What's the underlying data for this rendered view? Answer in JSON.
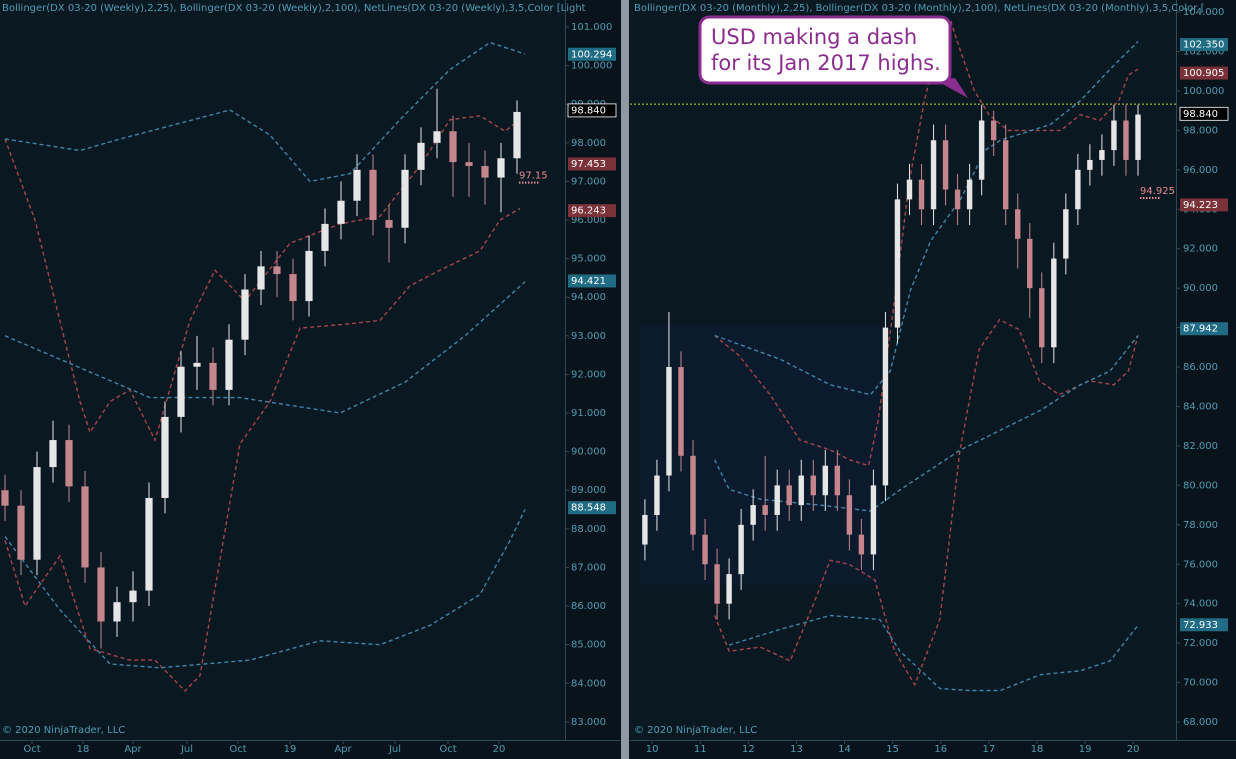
{
  "chart_data": [
    {
      "type": "candlestick",
      "header": "Bollinger(DX 03-20 (Weekly),2,25), Bollinger(DX 03-20 (Weekly),2,100), NetLines(DX 03-20 (Weekly),3,5,Color [Light",
      "copyright": "© 2020 NinjaTrader, LLC",
      "x": [
        0,
        4,
        8,
        12,
        16,
        20,
        24,
        28,
        32,
        36,
        40,
        44,
        48,
        52,
        56,
        60,
        64,
        68,
        72,
        76,
        80,
        84,
        88,
        92,
        96,
        100,
        104,
        108,
        112,
        116,
        120,
        124,
        128
      ],
      "open": [
        89.0,
        88.6,
        87.2,
        89.6,
        90.3,
        89.1,
        87.0,
        85.6,
        86.1,
        86.4,
        88.8,
        90.9,
        92.2,
        92.3,
        91.6,
        92.9,
        94.2,
        94.8,
        94.6,
        93.9,
        95.2,
        95.9,
        96.5,
        97.3,
        96.0,
        95.8,
        97.3,
        98.0,
        98.3,
        97.5,
        97.4,
        97.1,
        97.6
      ],
      "high": [
        89.4,
        89.0,
        90.0,
        90.8,
        90.7,
        89.5,
        87.4,
        86.5,
        86.9,
        89.2,
        91.3,
        92.6,
        93.0,
        92.7,
        93.3,
        94.6,
        95.2,
        95.2,
        95.0,
        95.6,
        96.3,
        97.0,
        97.7,
        97.7,
        96.4,
        97.7,
        98.4,
        99.4,
        98.7,
        98.0,
        97.8,
        98.0,
        99.1
      ],
      "low": [
        88.2,
        86.8,
        86.8,
        89.2,
        88.7,
        86.6,
        84.9,
        85.2,
        85.6,
        86.0,
        88.4,
        90.5,
        91.6,
        91.2,
        91.2,
        92.5,
        93.8,
        94.0,
        93.4,
        93.5,
        94.8,
        95.5,
        96.1,
        95.6,
        94.9,
        95.4,
        96.9,
        97.6,
        96.6,
        96.6,
        96.4,
        96.2,
        97.2
      ],
      "close": [
        88.6,
        87.2,
        89.6,
        90.3,
        89.1,
        87.0,
        85.6,
        86.1,
        86.4,
        88.8,
        90.9,
        92.2,
        92.3,
        91.6,
        92.9,
        94.2,
        94.8,
        94.6,
        93.9,
        95.2,
        95.9,
        96.5,
        97.3,
        96.0,
        95.8,
        97.3,
        98.0,
        98.3,
        97.5,
        97.4,
        97.1,
        97.6,
        98.8
      ],
      "up_color": "#e6e6e6",
      "down_color": "#c4858d",
      "bands": [
        {
          "color": "#a8454c",
          "x": [
            0,
            7.5,
            12.5,
            18.75,
            21.25,
            26.25,
            31.25,
            37.5,
            46.25,
            52.5,
            60,
            71.25,
            83.75,
            93.75,
            103.75,
            111.25,
            118.75,
            125,
            128.75
          ],
          "values": [
            98.1,
            96.0,
            93.9,
            91.3,
            90.5,
            91.3,
            91.6,
            90.3,
            93.4,
            94.7,
            93.9,
            95.4,
            95.9,
            96.1,
            97.4,
            98.6,
            98.7,
            98.3,
            98.6
          ]
        },
        {
          "color": "#a8454c",
          "x": [
            0,
            5,
            13.75,
            21.25,
            31.25,
            37.5,
            45,
            48.75,
            58.75,
            66.25,
            73.75,
            85,
            93.75,
            101.25,
            108.75,
            118.75,
            123.75,
            128.75
          ],
          "values": [
            87.7,
            86.0,
            87.3,
            84.9,
            84.6,
            84.6,
            83.8,
            84.2,
            90.2,
            91.3,
            93.2,
            93.3,
            93.4,
            94.3,
            94.7,
            95.2,
            96.0,
            96.3
          ]
        },
        {
          "color": "#3f86a8",
          "x": [
            0,
            18.75,
            28.75,
            56.25,
            66.25,
            76.25,
            86.25,
            98.75,
            111.25,
            121.25,
            130
          ],
          "values": [
            98.1,
            97.8,
            98.1,
            98.85,
            98.2,
            97.0,
            97.2,
            98.6,
            99.9,
            100.6,
            100.3
          ]
        },
        {
          "color": "#3f86a8",
          "x": [
            0,
            36.25,
            58.75,
            83.75,
            100,
            115,
            130
          ],
          "values": [
            93.0,
            91.4,
            91.4,
            91.0,
            91.8,
            93.0,
            94.4
          ]
        },
        {
          "color": "#3f86a8",
          "x": [
            0,
            13.75,
            26.25,
            38.75,
            61.25,
            78.75,
            93.75,
            106.25,
            118.75,
            126.25,
            130
          ],
          "values": [
            87.8,
            85.9,
            84.5,
            84.4,
            84.6,
            85.1,
            85.0,
            85.5,
            86.3,
            87.7,
            88.5
          ]
        }
      ],
      "net_line": 97.15,
      "xlim": [
        -1.25,
        140
      ],
      "xticks": [
        {
          "value": 6.75,
          "label": "Oct"
        },
        {
          "value": 19.5,
          "label": "18"
        },
        {
          "value": 32,
          "label": "Apr"
        },
        {
          "value": 45.5,
          "label": "Jul"
        },
        {
          "value": 58.25,
          "label": "Oct"
        },
        {
          "value": 71.25,
          "label": "19"
        },
        {
          "value": 84.5,
          "label": "Apr"
        },
        {
          "value": 97.5,
          "label": "Jul"
        },
        {
          "value": 110.75,
          "label": "Oct"
        },
        {
          "value": 123.5,
          "label": "20"
        }
      ],
      "ylim": [
        82.53,
        101.7
      ],
      "yticks": [
        {
          "value": 83,
          "label": "83.000"
        },
        {
          "value": 84,
          "label": "84.000"
        },
        {
          "value": 85,
          "label": "85.000"
        },
        {
          "value": 86,
          "label": "86.000"
        },
        {
          "value": 87,
          "label": "87.000"
        },
        {
          "value": 88,
          "label": "88.000"
        },
        {
          "value": 89,
          "label": "89.000"
        },
        {
          "value": 90,
          "label": "90.000"
        },
        {
          "value": 91,
          "label": "91.000"
        },
        {
          "value": 92,
          "label": "92.000"
        },
        {
          "value": 93,
          "label": "93.000"
        },
        {
          "value": 94,
          "label": "94.000"
        },
        {
          "value": 95,
          "label": "95.000"
        },
        {
          "value": 96,
          "label": "96.000"
        },
        {
          "value": 97,
          "label": "97.000"
        },
        {
          "value": 98,
          "label": "98.000"
        },
        {
          "value": 99,
          "label": "99.000"
        },
        {
          "value": 100,
          "label": "100.000"
        },
        {
          "value": 101,
          "label": "101.000"
        }
      ],
      "price_labels": [
        {
          "value": 100.294,
          "label": "100.294",
          "color": "#1f6c84"
        },
        {
          "value": 98.84,
          "label": "98.840",
          "color": "#000000"
        },
        {
          "value": 97.453,
          "label": "97.453",
          "color": "#7a3238"
        },
        {
          "value": 96.243,
          "label": "96.243",
          "color": "#7a3238"
        },
        {
          "value": 94.421,
          "label": "94.421",
          "color": "#1f6c84"
        },
        {
          "value": 88.548,
          "label": "88.548",
          "color": "#1f6c84"
        }
      ]
    },
    {
      "type": "candlestick",
      "header": "Bollinger(DX 03-20 (Monthly),2,25), Bollinger(DX 03-20 (Monthly),2,100), NetLines(DX 03-20 (Monthly),3,5,Color [",
      "copyright": "© 2020 NinjaTrader, LLC",
      "x": [
        9.85,
        10.1,
        10.35,
        10.6,
        10.85,
        11.1,
        11.35,
        11.6,
        11.85,
        12.1,
        12.35,
        12.6,
        12.85,
        13.1,
        13.35,
        13.6,
        13.85,
        14.1,
        14.35,
        14.6,
        14.85,
        15.1,
        15.35,
        15.6,
        15.85,
        16.1,
        16.35,
        16.6,
        16.85,
        17.1,
        17.35,
        17.6,
        17.85,
        18.1,
        18.35,
        18.6,
        18.85,
        19.1,
        19.35,
        19.6,
        19.85,
        20.1
      ],
      "open": [
        77.0,
        78.5,
        80.5,
        86.0,
        81.5,
        77.5,
        76.0,
        74.0,
        75.5,
        78.0,
        79.0,
        78.5,
        80.0,
        79.0,
        80.5,
        79.5,
        81.0,
        79.5,
        77.5,
        76.5,
        80.0,
        88.0,
        94.5,
        95.5,
        94.0,
        97.5,
        95.0,
        94.0,
        95.5,
        98.5,
        97.5,
        94.0,
        92.5,
        90.0,
        87.0,
        91.5,
        94.0,
        96.0,
        96.5,
        97.0,
        98.5,
        96.5
      ],
      "high": [
        79.3,
        81.3,
        88.8,
        86.8,
        82.3,
        78.3,
        76.8,
        76.3,
        78.8,
        79.8,
        81.5,
        80.8,
        80.8,
        81.3,
        81.3,
        81.8,
        81.8,
        80.3,
        78.3,
        80.8,
        88.8,
        95.3,
        96.3,
        96.3,
        98.3,
        98.3,
        95.8,
        96.3,
        99.3,
        99.0,
        98.3,
        94.8,
        93.3,
        90.8,
        92.3,
        94.8,
        96.8,
        97.3,
        97.8,
        99.3,
        99.3,
        99.3
      ],
      "low": [
        76.2,
        77.7,
        79.7,
        80.7,
        76.7,
        75.2,
        73.2,
        73.2,
        74.7,
        77.2,
        77.7,
        77.7,
        78.2,
        78.2,
        78.7,
        78.7,
        78.7,
        76.7,
        75.7,
        75.7,
        79.2,
        87.2,
        93.7,
        93.2,
        93.2,
        94.2,
        93.2,
        93.2,
        94.7,
        96.7,
        93.2,
        91.0,
        88.5,
        86.2,
        86.2,
        90.7,
        93.2,
        95.2,
        95.7,
        96.2,
        95.7,
        95.7
      ],
      "close": [
        78.5,
        80.5,
        86.0,
        81.5,
        77.5,
        76.0,
        74.0,
        75.5,
        78.0,
        79.0,
        78.5,
        80.0,
        79.0,
        80.5,
        79.5,
        81.0,
        79.5,
        77.5,
        76.5,
        80.0,
        88.0,
        94.5,
        95.5,
        94.0,
        97.5,
        95.0,
        94.0,
        95.5,
        98.5,
        97.5,
        94.0,
        92.5,
        90.0,
        87.0,
        91.5,
        94.0,
        96.0,
        96.5,
        97.0,
        98.5,
        96.5,
        98.8
      ],
      "up_color": "#e6e6e6",
      "down_color": "#c4858d",
      "bands": [
        {
          "color": "#a8454c",
          "x": [
            11.3,
            11.8,
            12.45,
            13.07,
            13.7,
            14.1,
            14.5,
            14.7,
            15.04,
            15.35,
            15.66,
            15.87,
            16.2,
            16.4,
            16.7,
            17.0,
            17.4,
            18.05,
            18.5,
            18.9,
            19.3,
            19.7,
            19.9,
            20.1
          ],
          "values": [
            87.6,
            86.6,
            84.6,
            82.3,
            81.8,
            81.3,
            81.0,
            83.3,
            89.4,
            95.5,
            99.5,
            101.6,
            103.6,
            102.1,
            100.0,
            98.8,
            98.0,
            98.0,
            98.0,
            98.8,
            98.5,
            99.5,
            100.8,
            101.1
          ]
        },
        {
          "color": "#a8454c",
          "x": [
            11.3,
            11.6,
            12.25,
            12.87,
            13.39,
            13.7,
            14.1,
            14.63,
            15.04,
            15.46,
            15.98,
            16.4,
            16.8,
            17.22,
            17.63,
            18.05,
            18.46,
            19.09,
            19.6,
            19.9,
            20.1
          ],
          "values": [
            73.4,
            71.6,
            71.8,
            71.1,
            74.2,
            76.2,
            76.0,
            75.2,
            71.6,
            69.9,
            73.2,
            81.8,
            86.9,
            88.4,
            87.9,
            85.3,
            84.6,
            85.3,
            85.1,
            85.8,
            87.6
          ]
        },
        {
          "color": "#3f86a8",
          "x": [
            11.3,
            12.66,
            13.7,
            14.54,
            14.95,
            15.37,
            15.79,
            16.41,
            16.93,
            17.24,
            18.28,
            18.9,
            19.52,
            20.1
          ],
          "values": [
            87.6,
            86.4,
            85.1,
            84.6,
            85.8,
            89.9,
            92.4,
            94.5,
            97.0,
            97.5,
            98.3,
            99.5,
            101.1,
            102.5
          ]
        },
        {
          "color": "#3f86a8",
          "x": [
            11.3,
            11.6,
            12.25,
            13.49,
            14.54,
            15.17,
            15.79,
            16.41,
            17.24,
            18.07,
            18.9,
            19.52,
            20.1
          ],
          "values": [
            81.3,
            79.8,
            79.3,
            79.0,
            78.7,
            79.8,
            80.8,
            81.8,
            82.8,
            83.8,
            85.1,
            85.8,
            87.6
          ]
        },
        {
          "color": "#3f86a8",
          "x": [
            11.6,
            12.66,
            13.7,
            14.73,
            15.15,
            15.98,
            16.6,
            17.24,
            18.07,
            18.9,
            19.52,
            20.1
          ],
          "values": [
            71.9,
            72.7,
            73.4,
            73.2,
            71.6,
            69.7,
            69.6,
            69.6,
            70.4,
            70.6,
            71.1,
            72.9
          ]
        }
      ],
      "net_line": 94.925,
      "hline": 99.33,
      "annotation": [
        "USD making a dash",
        "for its Jan 2017 highs."
      ],
      "xlim": [
        9.54,
        20.89
      ],
      "xticks": [
        10,
        11,
        12,
        13,
        14,
        15,
        16,
        17,
        18,
        19,
        20
      ],
      "ylim": [
        67.09,
        104.61
      ],
      "yticks": [
        {
          "value": 68,
          "label": "68.000"
        },
        {
          "value": 70,
          "label": "70.000"
        },
        {
          "value": 72,
          "label": "72.000"
        },
        {
          "value": 74,
          "label": "74.000"
        },
        {
          "value": 76,
          "label": "76.000"
        },
        {
          "value": 78,
          "label": "78.000"
        },
        {
          "value": 80,
          "label": "80.000"
        },
        {
          "value": 82,
          "label": "82.000"
        },
        {
          "value": 84,
          "label": "84.000"
        },
        {
          "value": 86,
          "label": "86.000"
        },
        {
          "value": 88,
          "label": "88.000"
        },
        {
          "value": 90,
          "label": "90.000"
        },
        {
          "value": 92,
          "label": "92.000"
        },
        {
          "value": 94,
          "label": "94.000"
        },
        {
          "value": 96,
          "label": "96.000"
        },
        {
          "value": 98,
          "label": "98.000"
        },
        {
          "value": 100,
          "label": "100.000"
        },
        {
          "value": 102,
          "label": "102.000"
        },
        {
          "value": 104,
          "label": "104.000"
        }
      ],
      "price_labels": [
        {
          "value": 102.35,
          "label": "102.350",
          "color": "#1f6c84"
        },
        {
          "value": 100.905,
          "label": "100.905",
          "color": "#7a3238"
        },
        {
          "value": 98.84,
          "label": "98.840",
          "color": "#000000"
        },
        {
          "value": 94.223,
          "label": "94.223",
          "color": "#7a3238"
        },
        {
          "value": 87.942,
          "label": "87.942",
          "color": "#1f6c84"
        },
        {
          "value": 72.933,
          "label": "72.933",
          "color": "#1f6c84"
        }
      ]
    }
  ]
}
